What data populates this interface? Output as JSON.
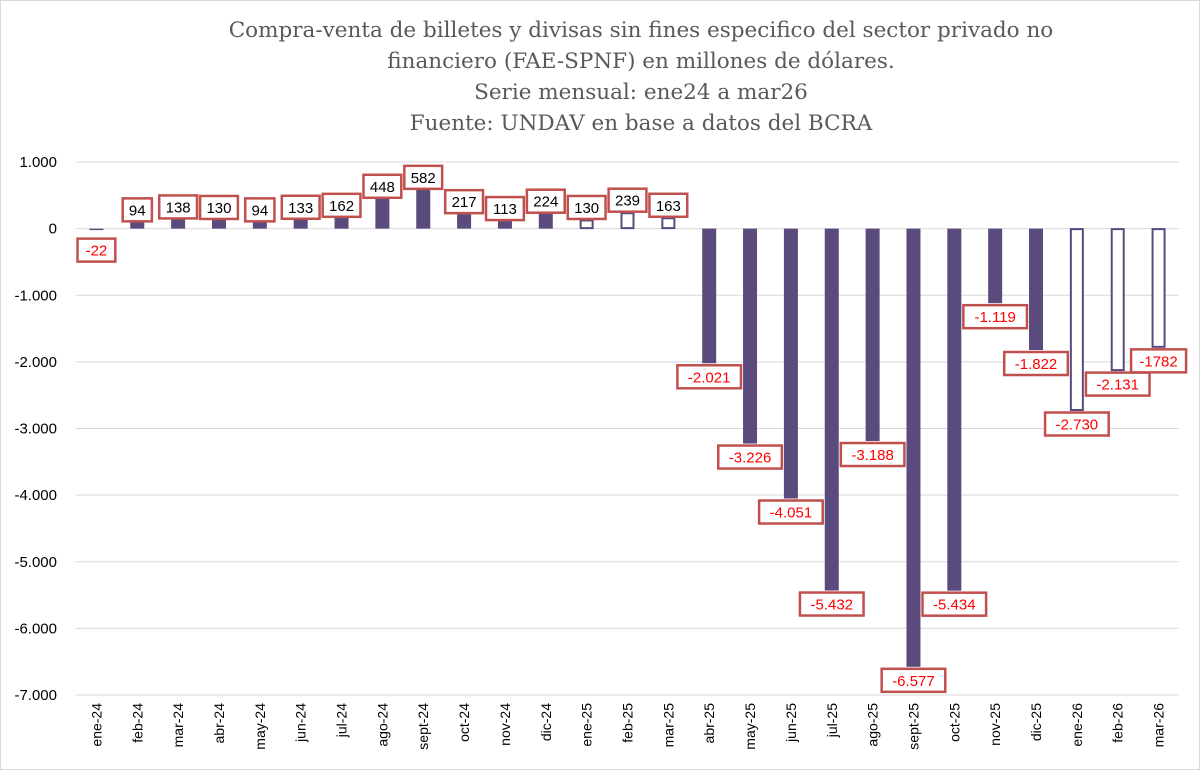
{
  "chart_data": {
    "type": "bar",
    "title_lines": [
      "Compra-venta de billetes y divisas sin fines especifico del sector privado no",
      "financiero (FAE-SPNF) en millones de dólares.",
      "Serie mensual: ene24 a mar26",
      "Fuente: UNDAV en base a datos del BCRA"
    ],
    "categories": [
      "ene-24",
      "feb-24",
      "mar-24",
      "abr-24",
      "may-24",
      "jun-24",
      "jul-24",
      "ago-24",
      "sept-24",
      "oct-24",
      "nov-24",
      "dic-24",
      "ene-25",
      "feb-25",
      "mar-25",
      "abr-25",
      "may-25",
      "jun-25",
      "jul-25",
      "ago-25",
      "sept-25",
      "oct-25",
      "nov-25",
      "dic-25",
      "ene-26",
      "feb-26",
      "mar-26"
    ],
    "values": [
      -22,
      94,
      138,
      130,
      94,
      133,
      162,
      448,
      582,
      217,
      113,
      224,
      130,
      239,
      163,
      -2021,
      -3226,
      -4051,
      -5432,
      -3188,
      -6577,
      -5434,
      -1119,
      -1822,
      -2730,
      -2131,
      -1782
    ],
    "data_labels": [
      "-22",
      "94",
      "138",
      "130",
      "94",
      "133",
      "162",
      "448",
      "582",
      "217",
      "113",
      "224",
      "130",
      "239",
      "163",
      "-2.021",
      "-3.226",
      "-4.051",
      "-5.432",
      "-3.188",
      "-6.577",
      "-5.434",
      "-1.119",
      "-1.822",
      "-2.730",
      "-2.131",
      "-1782"
    ],
    "bar_style": [
      "solid",
      "solid",
      "solid",
      "solid",
      "solid",
      "solid",
      "solid",
      "solid",
      "solid",
      "solid",
      "solid",
      "solid",
      "outline",
      "outline",
      "outline",
      "solid",
      "solid",
      "solid",
      "solid",
      "solid",
      "solid",
      "solid",
      "solid",
      "solid",
      "outline",
      "outline",
      "outline"
    ],
    "ylim": [
      -7000,
      1000
    ],
    "yticks": [
      1000,
      0,
      -1000,
      -2000,
      -3000,
      -4000,
      -5000,
      -6000,
      -7000
    ],
    "ytick_labels": [
      "1.000",
      "0",
      "-1.000",
      "-2.000",
      "-3.000",
      "-4.000",
      "-5.000",
      "-6.000",
      "-7.000"
    ],
    "grid": true,
    "legend": "none",
    "colors": {
      "bar": "#5b4a7e",
      "label_border": "#c0504d",
      "negative_label_text": "#ff0000",
      "positive_label_text": "#000000",
      "grid": "#d9d9d9",
      "axis_text": "#000000",
      "title_text": "#595959"
    }
  }
}
